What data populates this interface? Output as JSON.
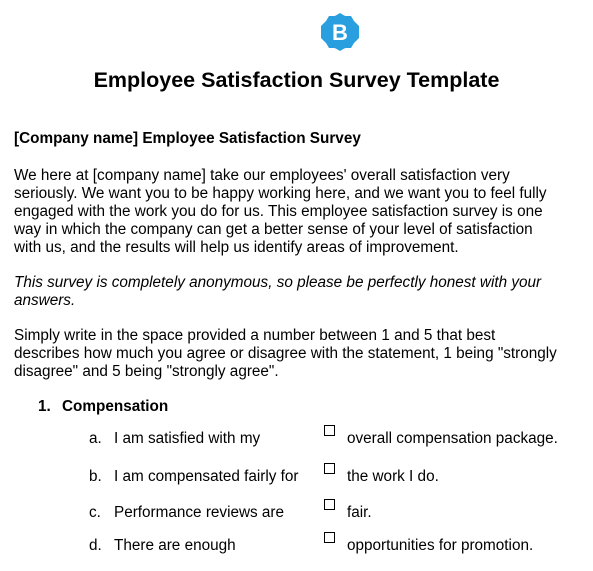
{
  "logo": {
    "letter": "B",
    "color": "#2a9fe0"
  },
  "document": {
    "title": "Employee Satisfaction Survey Template",
    "subtitle": "[Company name] Employee Satisfaction Survey",
    "intro_lines": [
      "We here at [company name] take our employees' overall satisfaction very",
      "seriously. We want you to be happy working here, and we want you to feel fully",
      "engaged with the work you do for us. This employee satisfaction survey is one",
      "way in which the company can get a better sense of your level of satisfaction",
      "with us, and the results will help us identify areas of improvement."
    ],
    "anonymous_lines": [
      "This survey is completely anonymous, so please be perfectly honest with your",
      "answers."
    ],
    "instruction_lines": [
      "Simply write in the space provided a number between 1 and 5 that best",
      "describes how much you agree or disagree with the statement, 1 being \"strongly",
      "disagree\" and 5 being \"strongly agree\"."
    ]
  },
  "section": {
    "number": "1.",
    "title": "Compensation",
    "questions": [
      {
        "letter": "a.",
        "statement": "I am satisfied with my",
        "continuation": "overall compensation package."
      },
      {
        "letter": "b.",
        "statement": "I am compensated fairly for",
        "continuation": "the work I do."
      },
      {
        "letter": "c.",
        "statement": "Performance reviews are",
        "continuation": "fair."
      },
      {
        "letter": "d.",
        "statement": "There are enough",
        "continuation": "opportunities for promotion."
      }
    ]
  }
}
